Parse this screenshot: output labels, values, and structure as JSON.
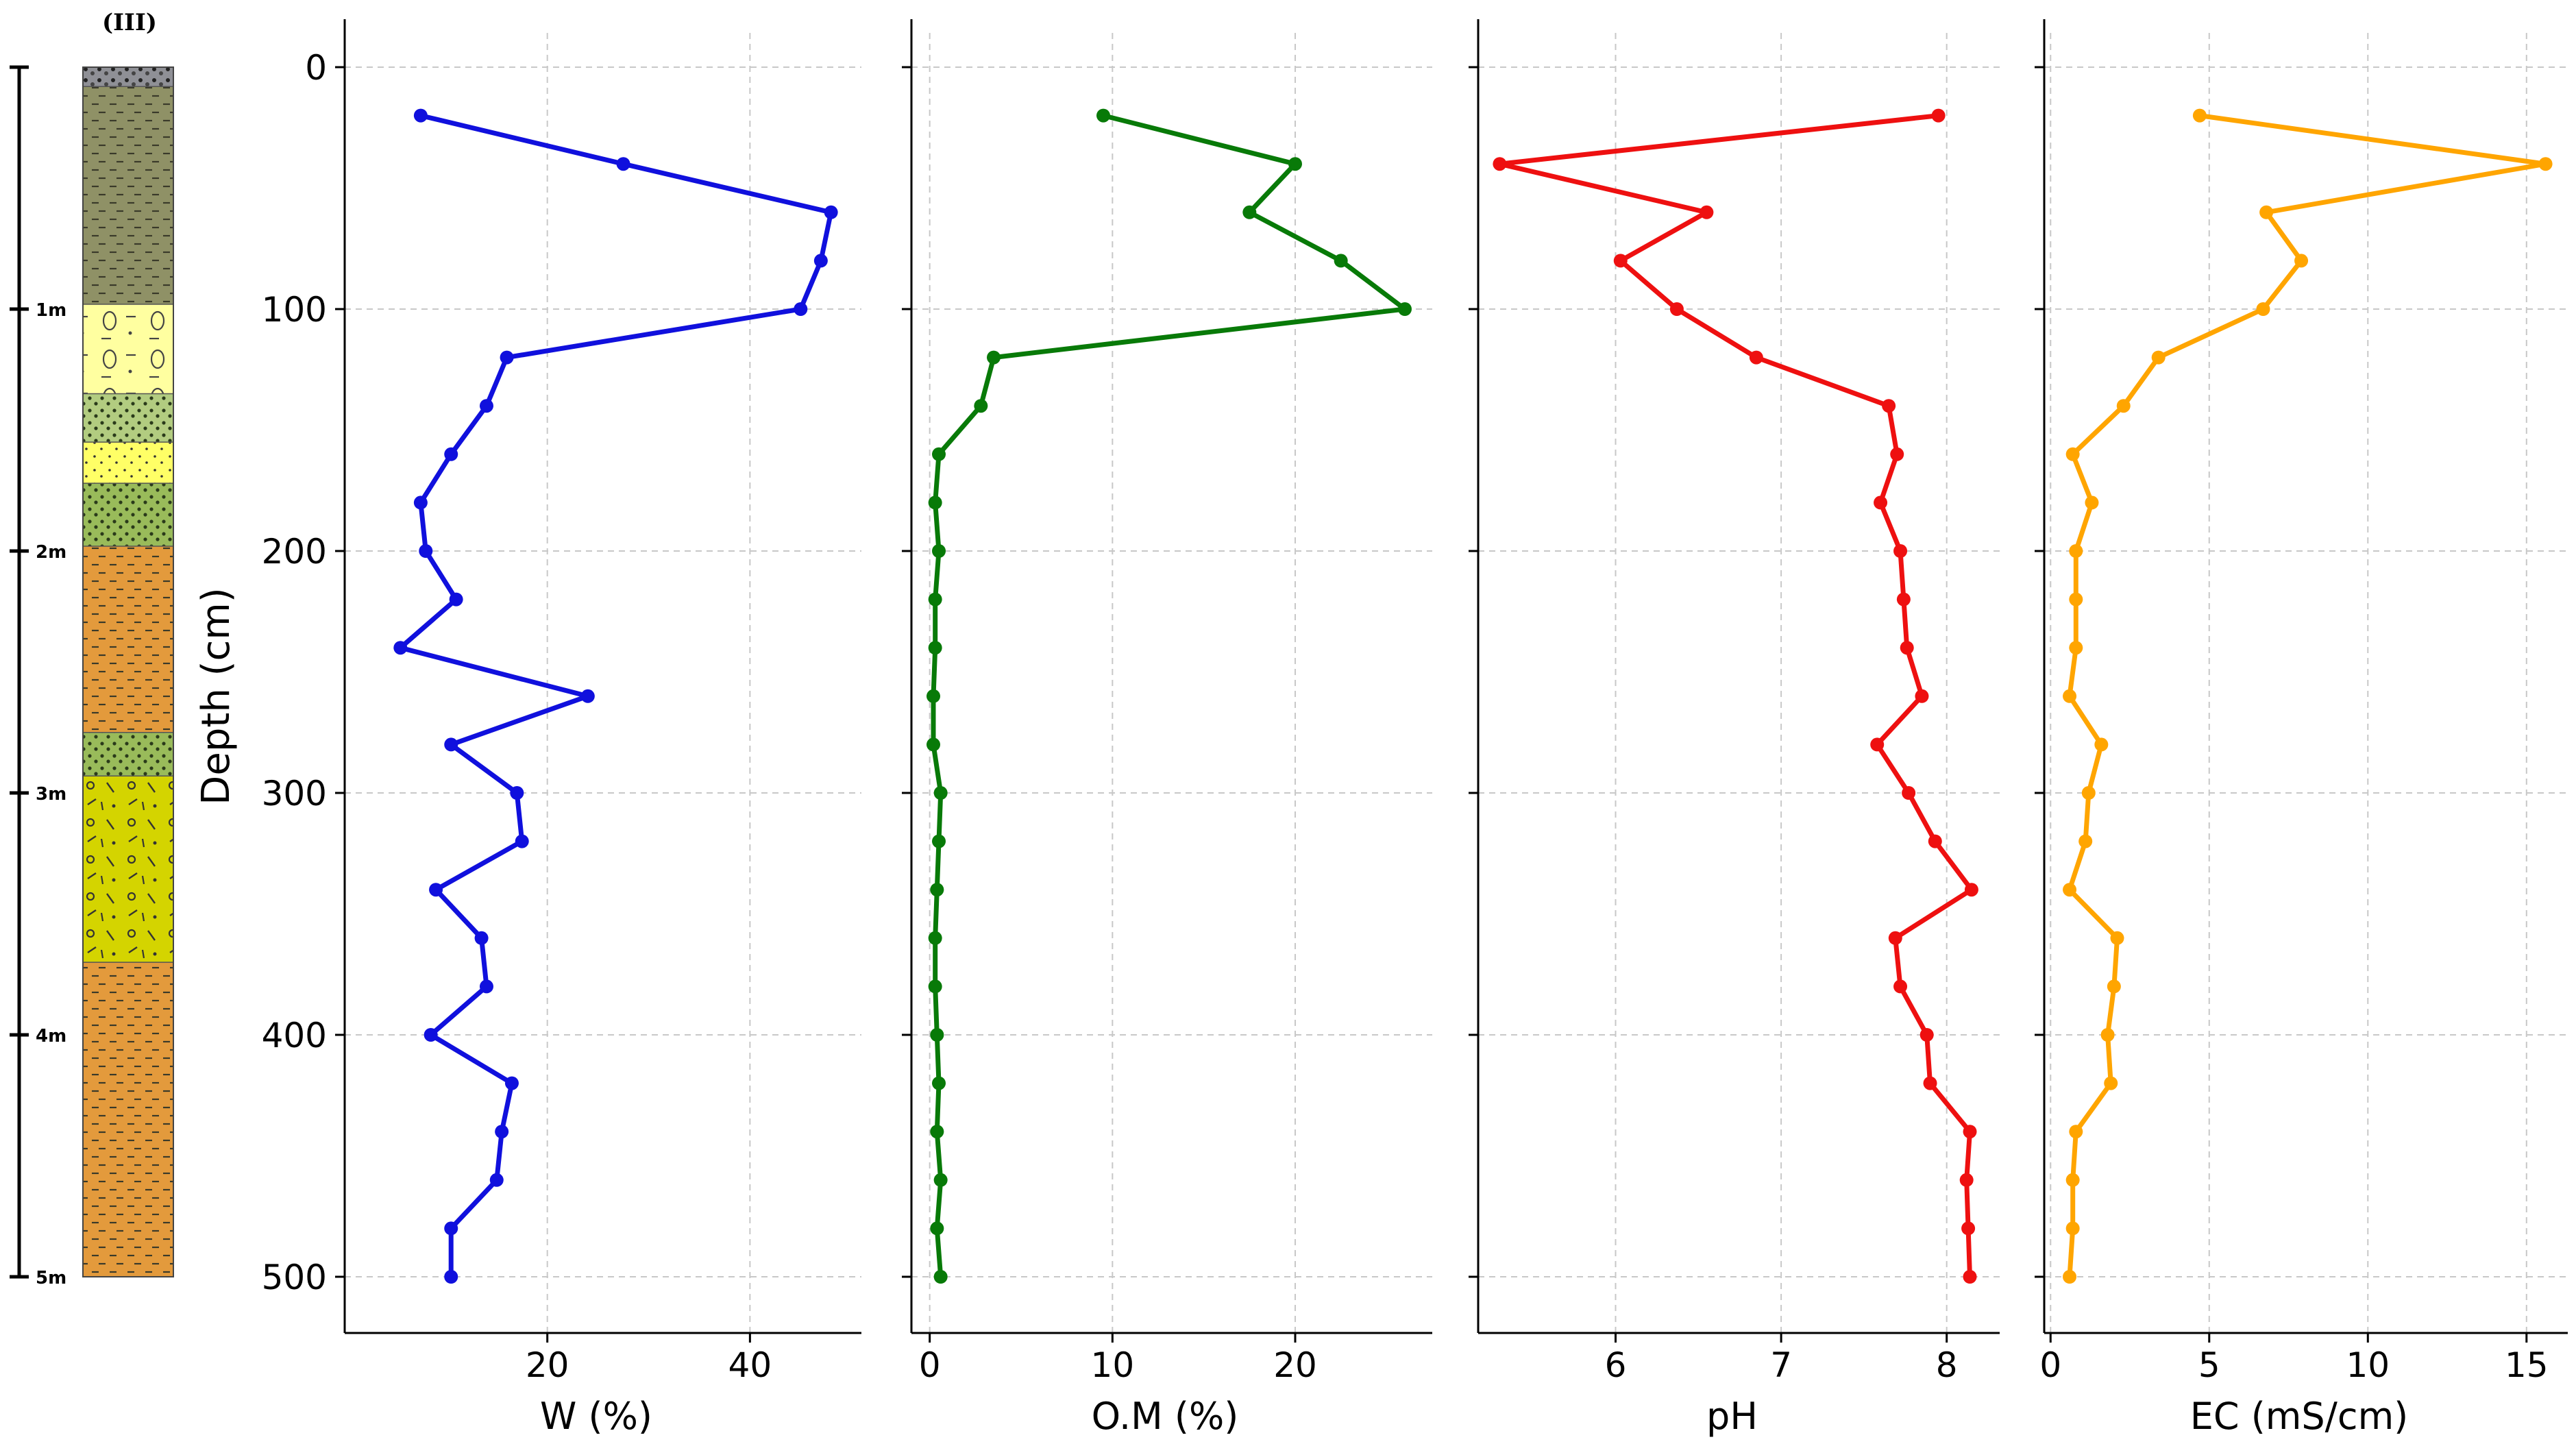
{
  "figure": {
    "column_label": "(III)",
    "depth_scale_labels": [
      "1m",
      "2m",
      "3m",
      "4m",
      "5m"
    ],
    "y_axis_label": "Depth (cm)",
    "y_ticks": [
      0,
      100,
      200,
      300,
      400,
      500
    ],
    "colors": {
      "W": "#1010dd",
      "OM": "#087a08",
      "pH": "#ee1010",
      "EC": "#ffa500",
      "grid": "#c8c8c8",
      "axis": "#000000"
    }
  },
  "stratigraphy": [
    {
      "top": 0,
      "bottom": 8,
      "lithology": "gravel",
      "color": "#8f9096"
    },
    {
      "top": 8,
      "bottom": 98,
      "lithology": "silty clay",
      "color": "#8f9166"
    },
    {
      "top": 98,
      "bottom": 135,
      "lithology": "sand with nodules",
      "color": "#ffffa0"
    },
    {
      "top": 135,
      "bottom": 155,
      "lithology": "sandy silt",
      "color": "#b2cc80"
    },
    {
      "top": 155,
      "bottom": 172,
      "lithology": "sand",
      "color": "#ffff66"
    },
    {
      "top": 172,
      "bottom": 198,
      "lithology": "clayey sand",
      "color": "#99bb5a"
    },
    {
      "top": 198,
      "bottom": 275,
      "lithology": "clay",
      "color": "#e39a3c"
    },
    {
      "top": 275,
      "bottom": 293,
      "lithology": "clayey sand",
      "color": "#99bb5a"
    },
    {
      "top": 293,
      "bottom": 370,
      "lithology": "gravelly sand",
      "color": "#d4d400"
    },
    {
      "top": 370,
      "bottom": 500,
      "lithology": "clay",
      "color": "#e39a3c"
    }
  ],
  "chart_data": [
    {
      "type": "line",
      "xlabel": "W (%)",
      "ylabel": "Depth (cm)",
      "xlim": [
        0,
        51
      ],
      "ylim": [
        0,
        525
      ],
      "y_inverted": true,
      "x_ticks": [
        20,
        40
      ],
      "grid": true,
      "series": [
        {
          "x": [
            7.5,
            27.5,
            48,
            47,
            45,
            16,
            14,
            10.5,
            7.5,
            8,
            11,
            5.5,
            24,
            10.5,
            17,
            17.5,
            9,
            13.5,
            14,
            8.5,
            16.5,
            15.5,
            15,
            10.5,
            10.5
          ],
          "y": [
            20,
            40,
            60,
            80,
            100,
            120,
            140,
            160,
            180,
            200,
            220,
            240,
            260,
            280,
            300,
            320,
            340,
            360,
            380,
            400,
            420,
            440,
            460,
            480,
            500
          ]
        }
      ]
    },
    {
      "type": "line",
      "xlabel": "O.M (%)",
      "ylabel": "Depth (cm)",
      "xlim": [
        -1,
        27.5
      ],
      "ylim": [
        0,
        525
      ],
      "y_inverted": true,
      "x_ticks": [
        0,
        10,
        20
      ],
      "grid": true,
      "series": [
        {
          "x": [
            9.5,
            20,
            17.5,
            22.5,
            26,
            3.5,
            2.8,
            0.5,
            0.3,
            0.5,
            0.3,
            0.3,
            0.2,
            0.2,
            0.6,
            0.5,
            0.4,
            0.3,
            0.3,
            0.4,
            0.5,
            0.4,
            0.6,
            0.4,
            0.6
          ],
          "y": [
            20,
            40,
            60,
            80,
            100,
            120,
            140,
            160,
            180,
            200,
            220,
            240,
            260,
            280,
            300,
            320,
            340,
            360,
            380,
            400,
            420,
            440,
            460,
            480,
            500
          ]
        }
      ]
    },
    {
      "type": "line",
      "xlabel": "pH",
      "ylabel": "Depth (cm)",
      "xlim": [
        5.17,
        8.32
      ],
      "ylim": [
        0,
        525
      ],
      "y_inverted": true,
      "x_ticks": [
        6,
        7,
        8
      ],
      "grid": true,
      "series": [
        {
          "x": [
            7.95,
            5.3,
            6.55,
            6.03,
            6.37,
            6.85,
            7.65,
            7.7,
            7.6,
            7.72,
            7.74,
            7.76,
            7.85,
            7.58,
            7.77,
            7.93,
            8.15,
            7.69,
            7.72,
            7.88,
            7.9,
            8.14,
            8.12,
            8.13,
            8.14
          ],
          "y": [
            20,
            40,
            60,
            80,
            100,
            120,
            140,
            160,
            180,
            200,
            220,
            240,
            260,
            280,
            300,
            320,
            340,
            360,
            380,
            400,
            420,
            440,
            460,
            480,
            500
          ]
        }
      ]
    },
    {
      "type": "line",
      "xlabel": "EC (mS/cm)",
      "ylabel": "Depth (cm)",
      "xlim": [
        -0.2,
        16.3
      ],
      "ylim": [
        0,
        525
      ],
      "y_inverted": true,
      "x_ticks": [
        0,
        5,
        10,
        15
      ],
      "grid": true,
      "series": [
        {
          "x": [
            4.7,
            15.6,
            6.8,
            7.9,
            6.7,
            3.4,
            2.3,
            0.7,
            1.3,
            0.8,
            0.8,
            0.8,
            0.6,
            1.6,
            1.2,
            1.1,
            0.6,
            2.1,
            2.0,
            1.8,
            1.9,
            0.8,
            0.7,
            0.7,
            0.6
          ],
          "y": [
            20,
            40,
            60,
            80,
            100,
            120,
            140,
            160,
            180,
            200,
            220,
            240,
            260,
            280,
            300,
            320,
            340,
            360,
            380,
            400,
            420,
            440,
            460,
            480,
            500
          ]
        }
      ]
    }
  ]
}
